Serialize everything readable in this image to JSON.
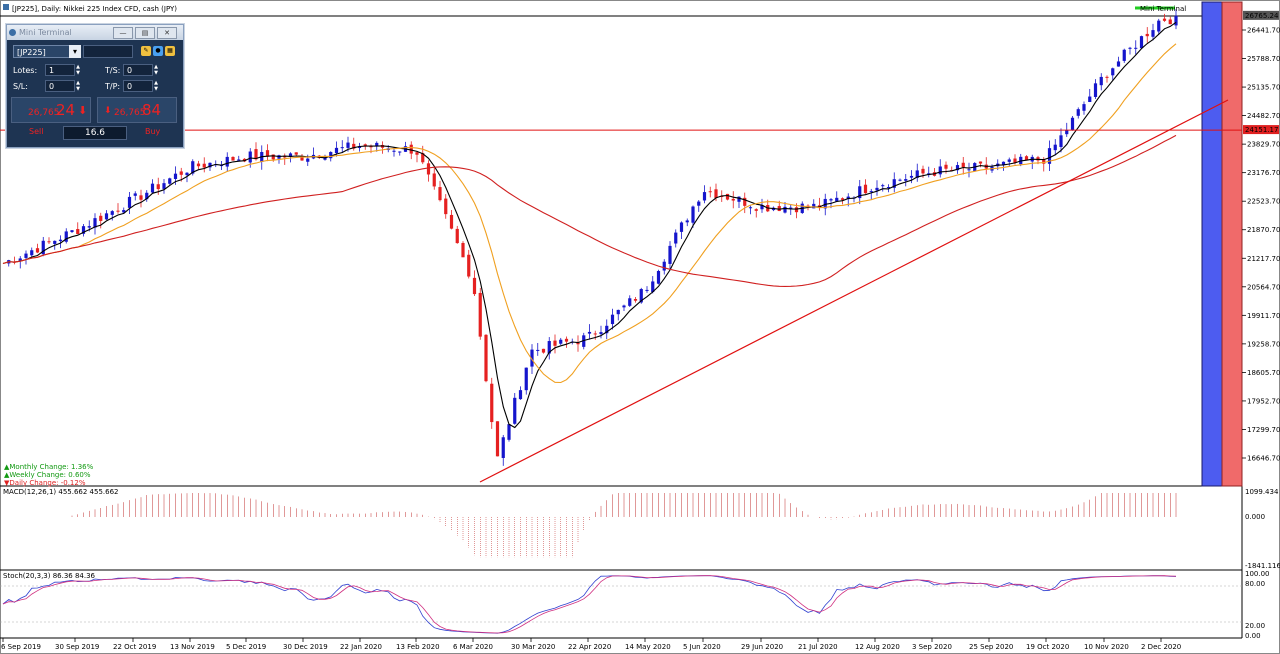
{
  "window": {
    "title": "[JP225], Daily: Nikkei 225 Index CFD, cash (JPY)",
    "mini_terminal_label": "Mini Terminal"
  },
  "mini_terminal": {
    "title": "Mini Terminal",
    "symbol": "[JP225]",
    "lots_label": "Lotes:",
    "lots_value": "1",
    "sl_label": "S/L:",
    "sl_value": "0",
    "ts_label": "T/S:",
    "ts_value": "0",
    "tp_label": "T/P:",
    "tp_value": "0",
    "sell_price_small": "26,765",
    "sell_price_big": "24",
    "buy_price_small": "26,765",
    "buy_price_big": "84",
    "sell_label": "Sell",
    "buy_label": "Buy",
    "spread_value": "16.6"
  },
  "changes": {
    "monthly": "Monthly Change: 1.36%",
    "weekly": "Weekly Change: 0.60%",
    "daily": "Daily Change: -0.12%"
  },
  "indicators": {
    "macd_label": "MACD(12,26,1) 455.662 455.662",
    "stoch_label": "Stoch(20,3,3) 86.36 84.36"
  },
  "price_axis": [
    "26441.70",
    "25788.70",
    "25135.70",
    "24482.70",
    "23829.70",
    "23176.70",
    "22523.70",
    "21870.70",
    "21217.70",
    "20564.70",
    "19911.70",
    "19258.70",
    "18605.70",
    "17952.70",
    "17299.70",
    "16646.70"
  ],
  "current_price_label": "26765.24",
  "hline_label": "24151.17",
  "macd_axis": [
    "1099.434",
    "0.000",
    "-1841.116"
  ],
  "stoch_axis": [
    "100.00",
    "80.00",
    "20.00",
    "0.00"
  ],
  "date_axis": [
    "6 Sep 2019",
    "30 Sep 2019",
    "22 Oct 2019",
    "13 Nov 2019",
    "5 Dec 2019",
    "30 Dec 2019",
    "22 Jan 2020",
    "13 Feb 2020",
    "6 Mar 2020",
    "30 Mar 2020",
    "22 Apr 2020",
    "14 May 2020",
    "5 Jun 2020",
    "29 Jun 2020",
    "21 Jul 2020",
    "12 Aug 2020",
    "3 Sep 2020",
    "25 Sep 2020",
    "19 Oct 2020",
    "10 Nov 2020",
    "2 Dec 2020"
  ],
  "colors": {
    "bull": "#1515cc",
    "bear": "#e52020",
    "ma_fast": "#000000",
    "ma_mid": "#f0a020",
    "ma_slow": "#d02020",
    "trendline": "#e01010",
    "shade": "#4d5cf0",
    "shade_red": "#f06a6a"
  },
  "chart_data": {
    "type": "candlestick",
    "anchors": [
      {
        "date": "6 Sep 2019",
        "close": 21100
      },
      {
        "date": "30 Sep 2019",
        "close": 21850
      },
      {
        "date": "22 Oct 2019",
        "close": 22550
      },
      {
        "date": "13 Nov 2019",
        "close": 23300
      },
      {
        "date": "5 Dec 2019",
        "close": 23550
      },
      {
        "date": "30 Dec 2019",
        "close": 23550
      },
      {
        "date": "22 Jan 2020",
        "close": 23800
      },
      {
        "date": "13 Feb 2020",
        "close": 23700
      },
      {
        "date": "6 Mar 2020",
        "close": 20700
      },
      {
        "date": "19 Mar 2020",
        "close": 16600
      },
      {
        "date": "30 Mar 2020",
        "close": 19100
      },
      {
        "date": "22 Apr 2020",
        "close": 19400
      },
      {
        "date": "14 May 2020",
        "close": 20500
      },
      {
        "date": "5 Jun 2020",
        "close": 22800
      },
      {
        "date": "29 Jun 2020",
        "close": 22400
      },
      {
        "date": "21 Jul 2020",
        "close": 22400
      },
      {
        "date": "12 Aug 2020",
        "close": 22900
      },
      {
        "date": "3 Sep 2020",
        "close": 23200
      },
      {
        "date": "25 Sep 2020",
        "close": 23300
      },
      {
        "date": "19 Oct 2020",
        "close": 23500
      },
      {
        "date": "10 Nov 2020",
        "close": 25400
      },
      {
        "date": "2 Dec 2020",
        "close": 26700
      }
    ],
    "horizontal_line": 24151.17,
    "current_price": 26765.24,
    "ylim": [
      16600,
      26800
    ]
  }
}
